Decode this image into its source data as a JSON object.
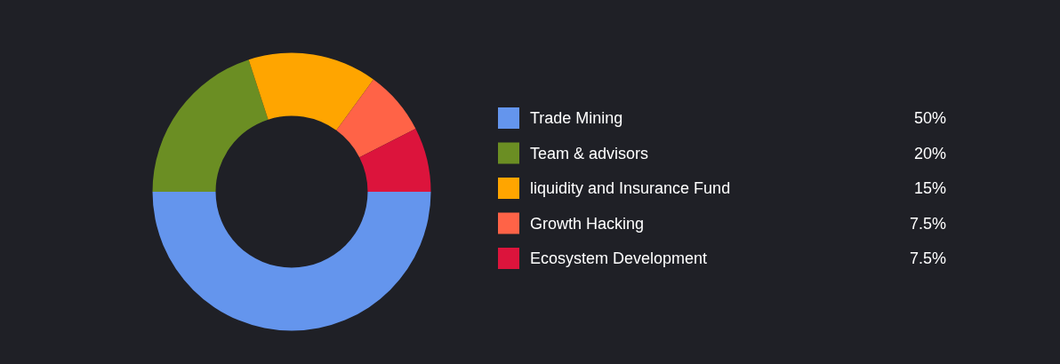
{
  "chart_data": {
    "type": "donut",
    "categories": [
      "Trade Mining",
      "Team & advisors",
      "liquidity and Insurance Fund",
      "Growth Hacking",
      "Ecosystem Development"
    ],
    "values": [
      50,
      20,
      15,
      7.5,
      7.5
    ],
    "colors": [
      "#6495ed",
      "#6b8e23",
      "#ffa500",
      "#ff6347",
      "#dc143c"
    ],
    "value_labels": [
      "50%",
      "20%",
      "15%",
      "7.5%",
      "7.5%"
    ],
    "legend": "right"
  }
}
